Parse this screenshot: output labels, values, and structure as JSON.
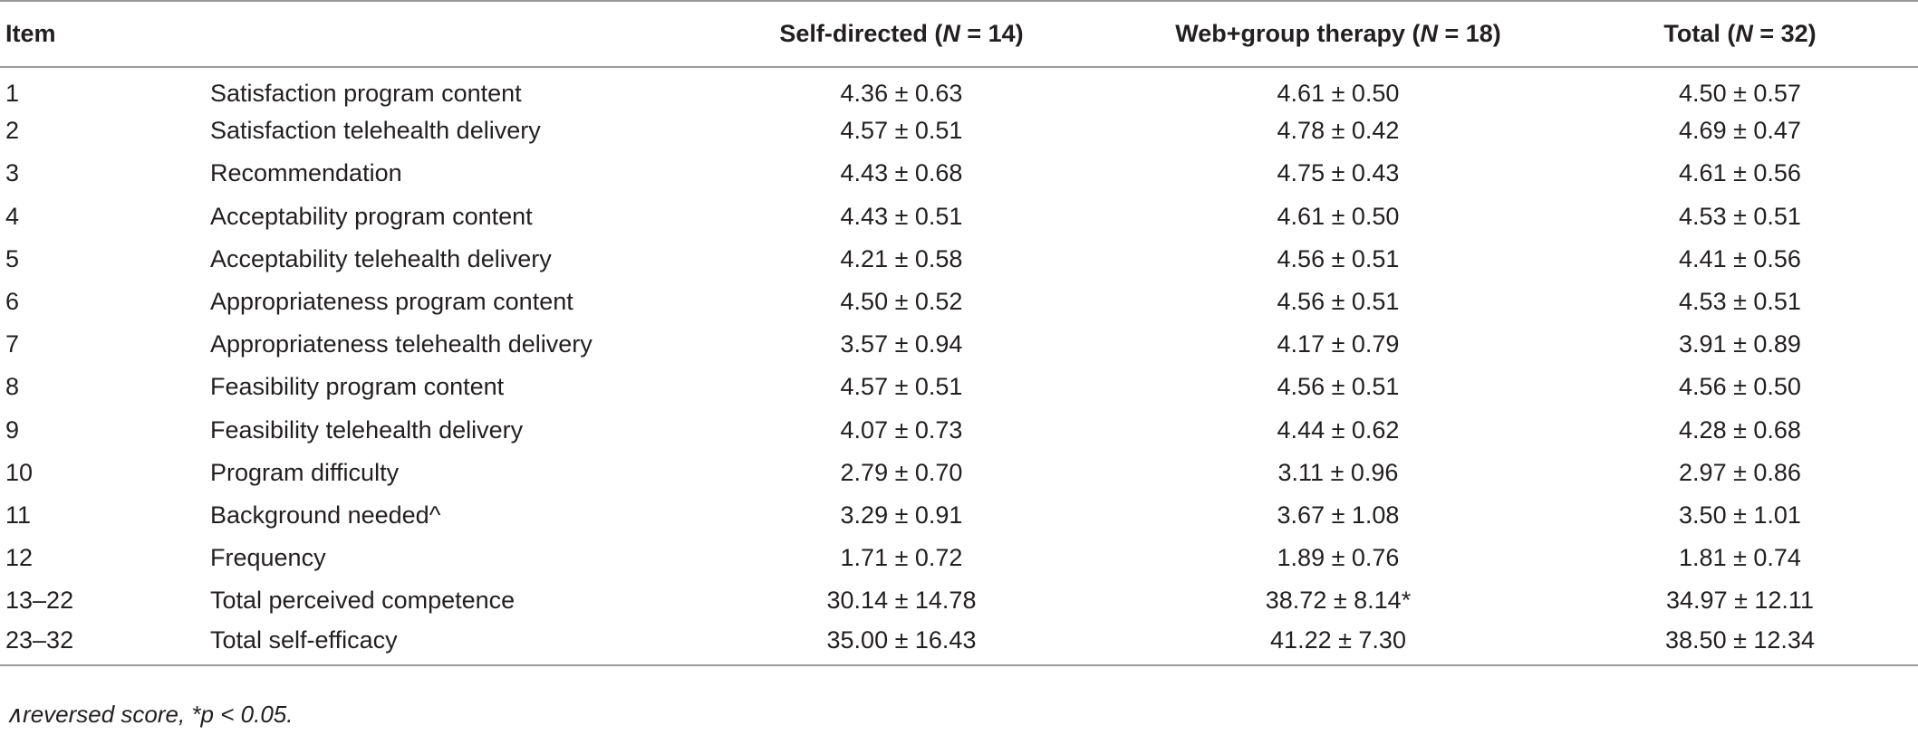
{
  "header": {
    "item": "Item",
    "col1_label": "Self-directed (",
    "col1_n": "N",
    "col1_rest": " = 14)",
    "col2_label": "Web+group therapy (",
    "col2_n": "N",
    "col2_rest": " = 18)",
    "col3_label": "Total (",
    "col3_n": "N",
    "col3_rest": " = 32)"
  },
  "rows": [
    {
      "item": "1",
      "description": "Satisfaction program content",
      "self_directed": "4.36 ± 0.63",
      "web_group": "4.61 ± 0.50",
      "total": "4.50 ± 0.57"
    },
    {
      "item": "2",
      "description": "Satisfaction telehealth delivery",
      "self_directed": "4.57 ± 0.51",
      "web_group": "4.78 ± 0.42",
      "total": "4.69 ± 0.47"
    },
    {
      "item": "3",
      "description": "Recommendation",
      "self_directed": "4.43 ± 0.68",
      "web_group": "4.75 ± 0.43",
      "total": "4.61 ± 0.56"
    },
    {
      "item": "4",
      "description": "Acceptability program content",
      "self_directed": "4.43 ± 0.51",
      "web_group": "4.61 ± 0.50",
      "total": "4.53 ± 0.51"
    },
    {
      "item": "5",
      "description": "Acceptability telehealth delivery",
      "self_directed": "4.21 ± 0.58",
      "web_group": "4.56 ± 0.51",
      "total": "4.41 ± 0.56"
    },
    {
      "item": "6",
      "description": "Appropriateness program content",
      "self_directed": "4.50 ± 0.52",
      "web_group": "4.56 ± 0.51",
      "total": "4.53 ± 0.51"
    },
    {
      "item": "7",
      "description": "Appropriateness telehealth delivery",
      "self_directed": "3.57 ± 0.94",
      "web_group": "4.17 ± 0.79",
      "total": "3.91 ± 0.89"
    },
    {
      "item": "8",
      "description": "Feasibility program content",
      "self_directed": "4.57 ± 0.51",
      "web_group": "4.56 ± 0.51",
      "total": "4.56 ± 0.50"
    },
    {
      "item": "9",
      "description": "Feasibility telehealth delivery",
      "self_directed": "4.07 ± 0.73",
      "web_group": "4.44 ± 0.62",
      "total": "4.28 ± 0.68"
    },
    {
      "item": "10",
      "description": "Program difficulty",
      "self_directed": "2.79 ± 0.70",
      "web_group": "3.11 ± 0.96",
      "total": "2.97 ± 0.86"
    },
    {
      "item": "11",
      "description": "Background needed^",
      "self_directed": "3.29 ± 0.91",
      "web_group": "3.67 ± 1.08",
      "total": "3.50 ± 1.01"
    },
    {
      "item": "12",
      "description": "Frequency",
      "self_directed": "1.71 ± 0.72",
      "web_group": "1.89 ± 0.76",
      "total": "1.81 ± 0.74"
    },
    {
      "item": "13–22",
      "description": "Total perceived competence",
      "self_directed": "30.14 ± 14.78",
      "web_group": "38.72 ± 8.14*",
      "total": "34.97 ± 12.11"
    },
    {
      "item": "23–32",
      "description": "Total self-efficacy",
      "self_directed": "35.00 ± 16.43",
      "web_group": "41.22 ± 7.30",
      "total": "38.50 ± 12.34"
    }
  ],
  "footnote": "∧reversed score, *p < 0.05."
}
